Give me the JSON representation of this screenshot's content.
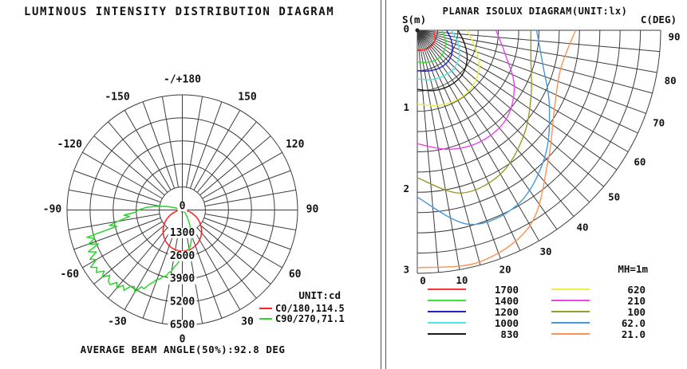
{
  "chart_data": [
    {
      "type": "polar-intensity",
      "title": "LUMINOUS INTENSITY DISTRIBUTION DIAGRAM",
      "footer": "AVERAGE BEAM ANGLE(50%):92.8 DEG",
      "unit_label": "UNIT:cd",
      "radial_unit": "cd",
      "radial_max": 6500,
      "radial_ticks": [
        "0",
        "1300",
        "2600",
        "3900",
        "5200",
        "6500"
      ],
      "grid": {
        "spoke_step_deg": 10,
        "rings": 5
      },
      "angle_labels": [
        {
          "angle": 180,
          "text": "-/+180"
        },
        {
          "angle": -150,
          "text": "-150"
        },
        {
          "angle": 150,
          "text": "150"
        },
        {
          "angle": -120,
          "text": "-120"
        },
        {
          "angle": 120,
          "text": "120"
        },
        {
          "angle": -90,
          "text": "-90"
        },
        {
          "angle": 90,
          "text": "90"
        },
        {
          "angle": -60,
          "text": "-60"
        },
        {
          "angle": 60,
          "text": "60"
        },
        {
          "angle": -30,
          "text": "-30"
        },
        {
          "angle": 30,
          "text": "30"
        },
        {
          "angle": 0,
          "text": "0"
        }
      ],
      "series": [
        {
          "name": "C0/180,114.5",
          "color": "#ff2222",
          "points": [
            [
              -90,
              0
            ],
            [
              -85,
              124
            ],
            [
              -80,
              284
            ],
            [
              -75,
              458
            ],
            [
              -70,
              640
            ],
            [
              -65,
              825
            ],
            [
              -60,
              1010
            ],
            [
              -55,
              1191
            ],
            [
              -50,
              1365
            ],
            [
              -45,
              1531
            ],
            [
              -40,
              1685
            ],
            [
              -35,
              1826
            ],
            [
              -30,
              1952
            ],
            [
              -25,
              2062
            ],
            [
              -20,
              2153
            ],
            [
              -15,
              2225
            ],
            [
              -10,
              2278
            ],
            [
              -5,
              2309
            ],
            [
              0,
              2320
            ],
            [
              5,
              2309
            ],
            [
              10,
              2278
            ],
            [
              15,
              2225
            ],
            [
              20,
              2153
            ],
            [
              25,
              2062
            ],
            [
              30,
              1952
            ],
            [
              35,
              1826
            ],
            [
              40,
              1685
            ],
            [
              45,
              1531
            ],
            [
              50,
              1365
            ],
            [
              55,
              1191
            ],
            [
              60,
              1010
            ],
            [
              65,
              825
            ],
            [
              70,
              640
            ],
            [
              75,
              458
            ],
            [
              80,
              284
            ],
            [
              85,
              124
            ],
            [
              90,
              0
            ]
          ]
        },
        {
          "name": "C90/270,71.1",
          "color": "#2fd32f",
          "points": [
            [
              -113,
              50
            ],
            [
              -108,
              400
            ],
            [
              -103,
              900
            ],
            [
              -98,
              1500
            ],
            [
              -94,
              2050
            ],
            [
              -90,
              2475
            ],
            [
              -87,
              2700
            ],
            [
              -85,
              3300
            ],
            [
              -83,
              3000
            ],
            [
              -80,
              3700
            ],
            [
              -78,
              4200
            ],
            [
              -76,
              3800
            ],
            [
              -74,
              5600
            ],
            [
              -72,
              5200
            ],
            [
              -70,
              5650
            ],
            [
              -68,
              5100
            ],
            [
              -66,
              5800
            ],
            [
              -64,
              5400
            ],
            [
              -62,
              5900
            ],
            [
              -60,
              5600
            ],
            [
              -58,
              6100
            ],
            [
              -56,
              5800
            ],
            [
              -54,
              6000
            ],
            [
              -52,
              5600
            ],
            [
              -50,
              5900
            ],
            [
              -48,
              5500
            ],
            [
              -46,
              5800
            ],
            [
              -44,
              5850
            ],
            [
              -42,
              5500
            ],
            [
              -40,
              5750
            ],
            [
              -38,
              5400
            ],
            [
              -36,
              5600
            ],
            [
              -34,
              5200
            ],
            [
              -32,
              5100
            ],
            [
              -30,
              5350
            ],
            [
              -28,
              4900
            ],
            [
              -26,
              4950
            ],
            [
              -24,
              4600
            ],
            [
              -22,
              4400
            ],
            [
              -20,
              4150
            ],
            [
              -18,
              4100
            ],
            [
              -16,
              3900
            ],
            [
              -14,
              3850
            ],
            [
              -12,
              3600
            ],
            [
              -10,
              3500
            ],
            [
              -8,
              3250
            ],
            [
              -6,
              3100
            ],
            [
              -4,
              2950
            ],
            [
              -2,
              2800
            ],
            [
              0,
              2690
            ],
            [
              3,
              2550
            ],
            [
              6,
              2400
            ],
            [
              9,
              2250
            ],
            [
              12,
              2100
            ],
            [
              15,
              1900
            ],
            [
              18,
              1650
            ],
            [
              21,
              1400
            ],
            [
              24,
              1150
            ],
            [
              27,
              900
            ],
            [
              30,
              700
            ],
            [
              34,
              500
            ],
            [
              38,
              350
            ],
            [
              44,
              230
            ],
            [
              52,
              140
            ],
            [
              62,
              70
            ],
            [
              75,
              25
            ],
            [
              88,
              0
            ]
          ]
        }
      ]
    },
    {
      "type": "planar-isolux",
      "title": "PLANAR ISOLUX DIAGRAM(UNIT:lx)",
      "mh_label": "MH=1m",
      "s_axis": {
        "label": "S(m)",
        "ticks": [
          0,
          1,
          2,
          3
        ],
        "max_m": 3
      },
      "c_axis": {
        "label": "C(DEG)",
        "labels": [
          90,
          80,
          70,
          60,
          50,
          40,
          30,
          20,
          10,
          0
        ]
      },
      "grid": {
        "arc_step_m": 0.25,
        "ray_step_deg": 5
      },
      "contour_angles_deg": [
        0,
        15,
        30,
        45,
        60,
        75,
        90
      ],
      "contours": [
        {
          "lux": "1700",
          "color": "#ff3333",
          "s_m": [
            0.24,
            0.25,
            0.26,
            0.26,
            0.25,
            0.22,
            0.2
          ]
        },
        {
          "lux": "1400",
          "color": "#3ae23a",
          "s_m": [
            0.39,
            0.41,
            0.43,
            0.43,
            0.4,
            0.35,
            0.3
          ]
        },
        {
          "lux": "1200",
          "color": "#2222cc",
          "s_m": [
            0.5,
            0.52,
            0.54,
            0.54,
            0.5,
            0.43,
            0.36
          ]
        },
        {
          "lux": "1000",
          "color": "#4fe8e8",
          "s_m": [
            0.6,
            0.63,
            0.65,
            0.65,
            0.6,
            0.51,
            0.42
          ]
        },
        {
          "lux": "830",
          "color": "#1a1a1a",
          "s_m": [
            0.73,
            0.77,
            0.79,
            0.78,
            0.71,
            0.6,
            0.5
          ]
        },
        {
          "lux": "620",
          "color": "#eded45",
          "s_m": [
            0.91,
            0.96,
            0.99,
            0.97,
            0.88,
            0.73,
            0.61
          ]
        },
        {
          "lux": "210",
          "color": "#ee44ee",
          "s_m": [
            1.4,
            1.52,
            1.58,
            1.55,
            1.38,
            1.12,
            0.97
          ]
        },
        {
          "lux": "100",
          "color": "#9a9a28",
          "s_m": [
            1.82,
            2.08,
            2.05,
            1.85,
            1.62,
            1.45,
            1.4
          ]
        },
        {
          "lux": "62.0",
          "color": "#4499dd",
          "s_m": [
            2.06,
            2.48,
            2.48,
            2.22,
            1.88,
            1.6,
            1.47
          ]
        },
        {
          "lux": "21.0",
          "color": "#ff9155",
          "s_m": [
            2.93,
            2.96,
            2.78,
            2.28,
            1.95,
            1.83,
            1.95
          ]
        }
      ]
    }
  ]
}
